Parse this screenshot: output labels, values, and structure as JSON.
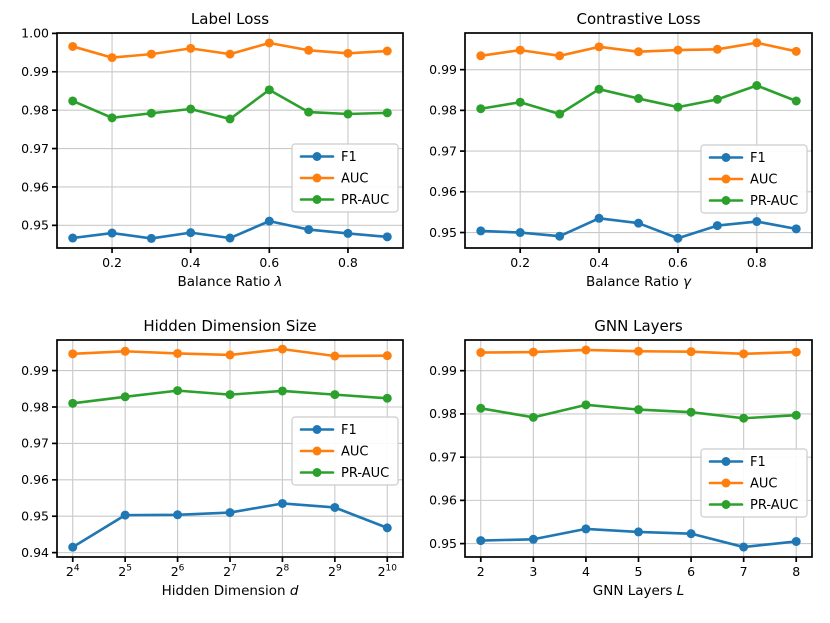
{
  "figure": {
    "background": "#ffffff",
    "text_color": "#000000",
    "grid_color": "#c9c9c9",
    "spine_color": "#000000",
    "legend_border_color": "#cccccc",
    "legend_background": "#ffffff"
  },
  "legend": {
    "entries": [
      "F1",
      "AUC",
      "PR-AUC"
    ],
    "colors": {
      "F1": "#1f77b4",
      "AUC": "#ff7f0e",
      "PR-AUC": "#2ca02c"
    }
  },
  "chart_data": [
    {
      "type": "line",
      "title": "Label Loss",
      "xlabel": "Balance Ratio",
      "xlabel_symbol": "λ",
      "x": [
        0.1,
        0.2,
        0.3,
        0.4,
        0.5,
        0.6,
        0.7,
        0.8,
        0.9
      ],
      "xlim": [
        0.06,
        0.94
      ],
      "ylim": [
        0.9441,
        1.0001
      ],
      "xticks": [
        0.2,
        0.4,
        0.6,
        0.8
      ],
      "xtick_labels": [
        "0.2",
        "0.4",
        "0.6",
        "0.8"
      ],
      "yticks": [
        0.95,
        0.96,
        0.97,
        0.98,
        0.99,
        1.0
      ],
      "grid": true,
      "legend_loc": "center right",
      "series": [
        {
          "name": "F1",
          "color": "#1f77b4",
          "values": [
            0.9467,
            0.948,
            0.9466,
            0.9481,
            0.9467,
            0.9511,
            0.9489,
            0.9479,
            0.947
          ]
        },
        {
          "name": "AUC",
          "color": "#ff7f0e",
          "values": [
            0.9966,
            0.9937,
            0.9946,
            0.9961,
            0.9946,
            0.9975,
            0.9956,
            0.9948,
            0.9954
          ]
        },
        {
          "name": "PR-AUC",
          "color": "#2ca02c",
          "values": [
            0.9824,
            0.978,
            0.9792,
            0.9803,
            0.9777,
            0.9853,
            0.9795,
            0.979,
            0.9793
          ]
        }
      ]
    },
    {
      "type": "line",
      "title": "Contrastive Loss",
      "xlabel": "Balance Ratio",
      "xlabel_symbol": "γ",
      "x": [
        0.1,
        0.2,
        0.3,
        0.4,
        0.5,
        0.6,
        0.7,
        0.8,
        0.9
      ],
      "xlim": [
        0.06,
        0.94
      ],
      "ylim": [
        0.9462,
        0.999
      ],
      "xticks": [
        0.2,
        0.4,
        0.6,
        0.8
      ],
      "xtick_labels": [
        "0.2",
        "0.4",
        "0.6",
        "0.8"
      ],
      "yticks": [
        0.95,
        0.96,
        0.97,
        0.98,
        0.99
      ],
      "grid": true,
      "legend_loc": "center right",
      "series": [
        {
          "name": "F1",
          "color": "#1f77b4",
          "values": [
            0.9504,
            0.95,
            0.9491,
            0.9535,
            0.9523,
            0.9486,
            0.9517,
            0.9527,
            0.9509
          ]
        },
        {
          "name": "AUC",
          "color": "#ff7f0e",
          "values": [
            0.9934,
            0.9948,
            0.9934,
            0.9956,
            0.9944,
            0.9948,
            0.995,
            0.9966,
            0.9945
          ]
        },
        {
          "name": "PR-AUC",
          "color": "#2ca02c",
          "values": [
            0.9804,
            0.982,
            0.9791,
            0.9852,
            0.9829,
            0.9808,
            0.9827,
            0.9861,
            0.9823
          ]
        }
      ]
    },
    {
      "type": "line",
      "title": "Hidden Dimension Size",
      "xlabel": "Hidden Dimension",
      "xlabel_symbol": "d",
      "x": [
        0,
        1,
        2,
        3,
        4,
        5,
        6
      ],
      "xlim": [
        -0.3,
        6.3
      ],
      "ylim": [
        0.9388,
        0.9984
      ],
      "xticks": [
        0,
        1,
        2,
        3,
        4,
        5,
        6
      ],
      "xtick_labels": [
        "2^4",
        "2^5",
        "2^6",
        "2^7",
        "2^8",
        "2^9",
        "2^10"
      ],
      "yticks": [
        0.94,
        0.95,
        0.96,
        0.97,
        0.98,
        0.99
      ],
      "grid": true,
      "legend_loc": "right",
      "series": [
        {
          "name": "F1",
          "color": "#1f77b4",
          "values": [
            0.9415,
            0.9503,
            0.9504,
            0.951,
            0.9535,
            0.9524,
            0.9468
          ]
        },
        {
          "name": "AUC",
          "color": "#ff7f0e",
          "values": [
            0.9946,
            0.9953,
            0.9947,
            0.9943,
            0.9959,
            0.994,
            0.9941
          ]
        },
        {
          "name": "PR-AUC",
          "color": "#2ca02c",
          "values": [
            0.981,
            0.9828,
            0.9845,
            0.9834,
            0.9844,
            0.9834,
            0.9824
          ]
        }
      ]
    },
    {
      "type": "line",
      "title": "GNN Layers",
      "xlabel": "GNN Layers",
      "xlabel_symbol": "L",
      "x": [
        2,
        3,
        4,
        5,
        6,
        7,
        8
      ],
      "xlim": [
        1.7,
        8.3
      ],
      "ylim": [
        0.9469,
        0.9971
      ],
      "xticks": [
        2,
        3,
        4,
        5,
        6,
        7,
        8
      ],
      "xtick_labels": [
        "2",
        "3",
        "4",
        "5",
        "6",
        "7",
        "8"
      ],
      "yticks": [
        0.95,
        0.96,
        0.97,
        0.98,
        0.99
      ],
      "grid": true,
      "legend_loc": "center right",
      "series": [
        {
          "name": "F1",
          "color": "#1f77b4",
          "values": [
            0.9507,
            0.951,
            0.9534,
            0.9527,
            0.9523,
            0.9492,
            0.9505
          ]
        },
        {
          "name": "AUC",
          "color": "#ff7f0e",
          "values": [
            0.9942,
            0.9943,
            0.9948,
            0.9945,
            0.9944,
            0.9939,
            0.9943
          ]
        },
        {
          "name": "PR-AUC",
          "color": "#2ca02c",
          "values": [
            0.9813,
            0.9792,
            0.9821,
            0.981,
            0.9804,
            0.979,
            0.9797
          ]
        }
      ]
    }
  ]
}
